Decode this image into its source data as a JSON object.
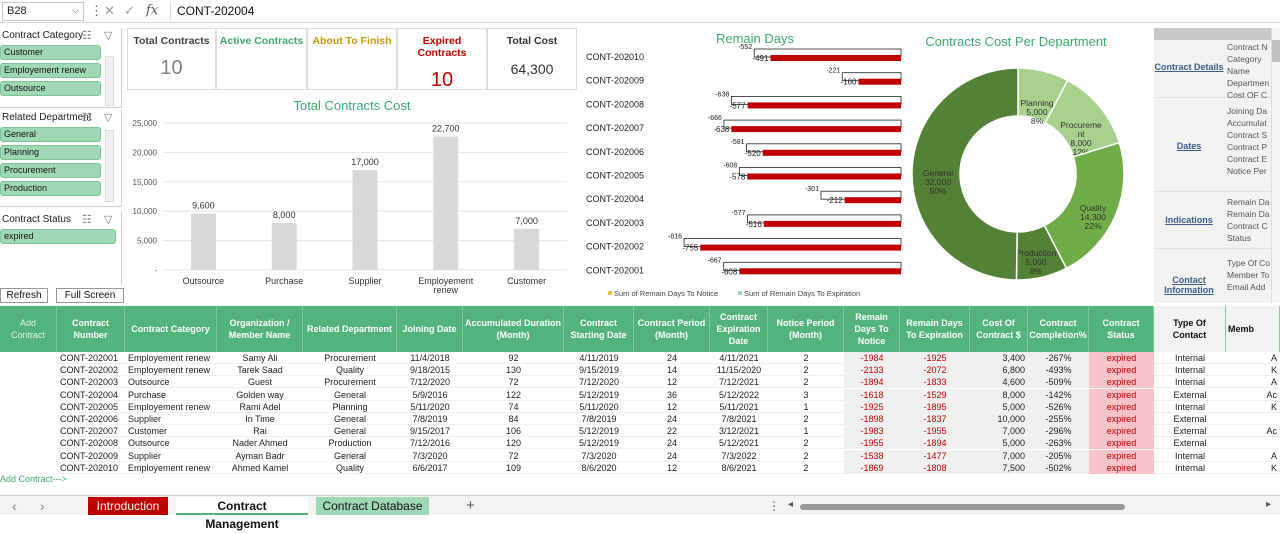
{
  "formula_bar": {
    "cell_ref": "B28",
    "formula": "CONT-202004",
    "cancel_glyph": "✕",
    "enter_glyph": "✓",
    "fx_glyph": "fx"
  },
  "slicers": {
    "contract_category": {
      "title": "Contract Category",
      "items": [
        "Customer",
        "Employement renew",
        "Outsource"
      ]
    },
    "related_department": {
      "title": "Related Department",
      "items": [
        "General",
        "Planning",
        "Procurement",
        "Production"
      ]
    },
    "contract_status": {
      "title": "Contract Status",
      "items": [
        "expired"
      ]
    }
  },
  "buttons": {
    "refresh": "Refresh",
    "full_screen": "Full Screen",
    "add_contract": "Add Contract",
    "add_contract_link": "Add Contract--->"
  },
  "kpis": [
    {
      "title": "Total Contracts",
      "value": "10",
      "color": "#444444",
      "value_color": "#808080"
    },
    {
      "title": "Active Contracts",
      "value": "",
      "color": "#3daa6d",
      "value_color": "#3daa6d"
    },
    {
      "title": "About To Finish",
      "value": "",
      "color": "#cc9a06",
      "value_color": "#cc9a06"
    },
    {
      "title": "Expired Contracts",
      "value": "10",
      "color": "#c00000",
      "value_color": "#c00000"
    },
    {
      "title": "Total Cost",
      "value": "64,300",
      "color": "#333333",
      "value_color": "#333333"
    }
  ],
  "chart_data": [
    {
      "type": "bar",
      "title": "Total Contracts Cost",
      "categories": [
        "Outsource",
        "Purchase",
        "Supplier",
        "Employement renew",
        "Customer"
      ],
      "values": [
        9600,
        8000,
        17000,
        22700,
        7000
      ],
      "value_labels": [
        "9,600",
        "8,000",
        "17,000",
        "22,700",
        "7,000"
      ],
      "ylim": [
        0,
        25000
      ],
      "yticks": [
        0,
        5000,
        10000,
        15000,
        20000,
        25000
      ],
      "ytick_labels": [
        "-",
        "5,000",
        "10,000",
        "15,000",
        "20,000",
        "25,000"
      ],
      "grid": true
    },
    {
      "type": "bar",
      "orientation": "horizontal",
      "title": "Remain Days",
      "categories": [
        "CONT-202010",
        "CONT-202009",
        "CONT-202008",
        "CONT-202007",
        "CONT-202006",
        "CONT-202005",
        "CONT-202004",
        "CONT-202003",
        "CONT-202002",
        "CONT-202001"
      ],
      "series": [
        {
          "name": "Sum of Remain Days To Notice",
          "values": [
            -552,
            -221,
            -638,
            -666,
            -581,
            -608,
            -301,
            -577,
            -816,
            -667
          ],
          "color": "#ffffff"
        },
        {
          "name": "Sum of Remain Days To Expiration",
          "values": [
            -491,
            -160,
            -577,
            -638,
            -520,
            -578,
            -212,
            -516,
            -755,
            -608
          ],
          "color": "#c00000"
        }
      ],
      "xlim": [
        -850,
        0
      ],
      "legend": "bottom"
    },
    {
      "type": "pie",
      "donut": true,
      "title": "Contracts Cost Per Department",
      "categories": [
        "Planning",
        "Procurement",
        "Quality",
        "Production",
        "General"
      ],
      "values": [
        5000,
        8000,
        14300,
        5000,
        32000
      ],
      "percent_labels": [
        "8%",
        "12%",
        "22%",
        "8%",
        "50%"
      ],
      "value_labels": [
        "5,000",
        "8,000",
        "14,300",
        "5,000",
        "32,000"
      ],
      "slice_labels": [
        "Planning",
        "Procureme nt",
        "Quality",
        "Production",
        "General"
      ],
      "colors": [
        "#a9d18e",
        "#a9d18e",
        "#70ad47",
        "#538135",
        "#538135"
      ]
    }
  ],
  "side_panel": {
    "groups": [
      {
        "label": "Contract Details",
        "fields": [
          "Contract N",
          "Category",
          "Name",
          "Departmen",
          "Cost OF C"
        ]
      },
      {
        "label": "Dates",
        "fields": [
          "Joining Da",
          "Accumulat",
          "Contract S",
          "Contract P",
          "Contract E",
          "Notice Per"
        ]
      },
      {
        "label": "Indications",
        "fields": [
          "Remain Da",
          "Remain Da",
          "Contract C",
          "Status"
        ]
      },
      {
        "label": "Contact Information",
        "fields": [
          "Type Of Co",
          "Member To",
          "Email Add"
        ]
      }
    ]
  },
  "table": {
    "headers": [
      "Contract Number",
      "Contract Category",
      "Organization / Member Name",
      "Related Department",
      "Joining Date",
      "Accumulated Duration (Month)",
      "Contract Starting Date",
      "Contract Period (Month)",
      "Contract Expiration Date",
      "Notice Period (Month)",
      "Remain Days To Notice",
      "Remain Days To Expiration",
      "Cost Of Contract $",
      "Contract Completion%",
      "Contract Status",
      "Type Of Contact",
      "Memb"
    ],
    "rows": [
      [
        "CONT-202001",
        "Employement renew",
        "Samy Ali",
        "Procurement",
        "11/4/2018",
        "92",
        "4/11/2019",
        "24",
        "4/11/2021",
        "2",
        "-1984",
        "-1925",
        "3,400",
        "-267%",
        "expired",
        "Internal",
        "A"
      ],
      [
        "CONT-202002",
        "Employement renew",
        "Tarek Saad",
        "Quality",
        "9/18/2015",
        "130",
        "9/15/2019",
        "14",
        "11/15/2020",
        "2",
        "-2133",
        "-2072",
        "6,800",
        "-493%",
        "expired",
        "Internal",
        "K"
      ],
      [
        "CONT-202003",
        "Outsource",
        "Guest",
        "Procurement",
        "7/12/2020",
        "72",
        "7/12/2020",
        "12",
        "7/12/2021",
        "2",
        "-1894",
        "-1833",
        "4,600",
        "-509%",
        "expired",
        "Internal",
        "A"
      ],
      [
        "CONT-202004",
        "Purchase",
        "Golden way",
        "General",
        "5/9/2016",
        "122",
        "5/12/2019",
        "36",
        "5/12/2022",
        "3",
        "-1618",
        "-1529",
        "8,000",
        "-142%",
        "expired",
        "External",
        "Ac"
      ],
      [
        "CONT-202005",
        "Employement renew",
        "Rami Adel",
        "Planning",
        "5/11/2020",
        "74",
        "5/11/2020",
        "12",
        "5/11/2021",
        "1",
        "-1925",
        "-1895",
        "5,000",
        "-526%",
        "expired",
        "Internal",
        "K"
      ],
      [
        "CONT-202006",
        "Supplier",
        "In Time",
        "General",
        "7/8/2019",
        "84",
        "7/8/2019",
        "24",
        "7/8/2021",
        "2",
        "-1898",
        "-1837",
        "10,000",
        "-255%",
        "expired",
        "External",
        ""
      ],
      [
        "CONT-202007",
        "Customer",
        "Rai",
        "General",
        "9/15/2017",
        "106",
        "5/12/2019",
        "22",
        "3/12/2021",
        "1",
        "-1983",
        "-1955",
        "7,000",
        "-296%",
        "expired",
        "External",
        "Ac"
      ],
      [
        "CONT-202008",
        "Outsource",
        "Nader Ahmed",
        "Production",
        "7/12/2016",
        "120",
        "5/12/2019",
        "24",
        "5/12/2021",
        "2",
        "-1955",
        "-1894",
        "5,000",
        "-263%",
        "expired",
        "External",
        ""
      ],
      [
        "CONT-202009",
        "Supplier",
        "Ayman Badr",
        "General",
        "7/3/2020",
        "72",
        "7/3/2020",
        "24",
        "7/3/2022",
        "2",
        "-1538",
        "-1477",
        "7,000",
        "-205%",
        "expired",
        "Internal",
        "A"
      ],
      [
        "CONT-202010",
        "Employement renew",
        "Ahmed Kamel",
        "Quality",
        "6/6/2017",
        "109",
        "8/6/2020",
        "12",
        "8/6/2021",
        "2",
        "-1869",
        "-1808",
        "7,500",
        "-502%",
        "expired",
        "Internal",
        "K"
      ]
    ]
  },
  "tabs": [
    {
      "label": "Introduction",
      "active": false
    },
    {
      "label": "Contract Management",
      "active": true
    },
    {
      "label": "Contract Database",
      "active": false
    }
  ],
  "tab_nav": {
    "prev": "‹",
    "next": "›",
    "add": "+",
    "more": "⋮",
    "scroll_left": "◂",
    "scroll_right": "▸"
  },
  "colors": {
    "accent": "#52b47c",
    "expired": "#c00000",
    "expired_bg": "#f7c2c8",
    "tab_intro": "#c00000"
  }
}
